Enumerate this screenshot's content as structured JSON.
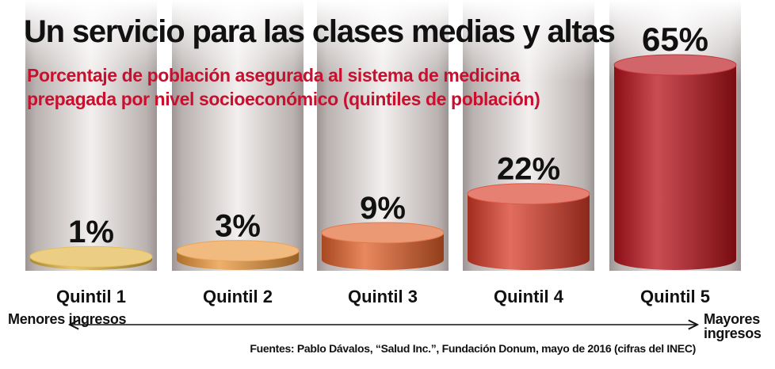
{
  "title": "Un servicio para las clases medias y altas",
  "subtitle": "Porcentaje de población asegurada al sistema de medicina prepagada por nivel socioeconómico (quintiles de población)",
  "axis": {
    "left_label": "Menores ingresos",
    "right_label": "Mayores ingresos"
  },
  "source": "Fuentes: Pablo Dávalos, “Salud Inc.”, Fundación Donum, mayo de 2016 (cifras del INEC)",
  "colors": {
    "title": "#111111",
    "subtitle": "#c8102e",
    "bar_gradient": [
      "#e0b440",
      "#e9953a",
      "#e0602a",
      "#d83c28",
      "#b8121a"
    ]
  },
  "chart_data": {
    "type": "bar",
    "title": "Un servicio para las clases medias y altas",
    "subtitle": "Porcentaje de población asegurada al sistema de medicina prepagada por nivel socioeconómico (quintiles de población)",
    "categories": [
      "Quintil 1",
      "Quintil 2",
      "Quintil 3",
      "Quintil 4",
      "Quintil 5"
    ],
    "values": [
      1,
      3,
      9,
      22,
      65
    ],
    "value_labels": [
      "1%",
      "3%",
      "9%",
      "22%",
      "65%"
    ],
    "unit": "%",
    "ylim": [
      0,
      100
    ],
    "grid": false,
    "legend": "none"
  }
}
